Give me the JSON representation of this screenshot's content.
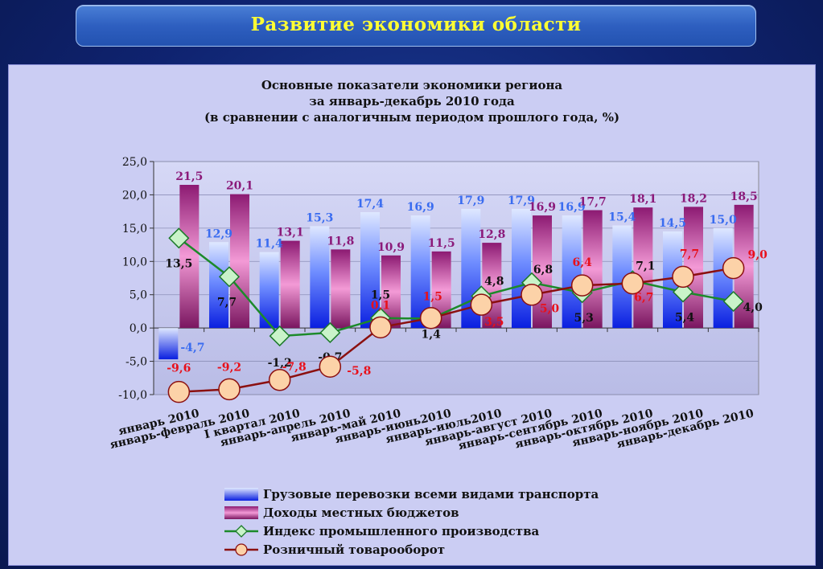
{
  "header": {
    "title": "Развитие экономики области"
  },
  "chart_data": {
    "type": "bar",
    "title_lines": [
      "Основные показатели экономики региона",
      "за январь-декабрь 2010 года",
      "(в сравнении с аналогичным периодом прошлого года, %)"
    ],
    "categories": [
      "январь 2010",
      "январь-февраль 2010",
      "I квартал  2010",
      "январь-апрель 2010",
      "январь-май 2010",
      "январь-июнь2010",
      "январь-июль2010",
      "январь-август 2010",
      "январь-сентябрь 2010",
      "январь-октябрь 2010",
      "январь-ноябрь 2010",
      "январь-декабрь 2010"
    ],
    "ylim": [
      -10,
      25
    ],
    "yticks": [
      "25,0",
      "20,0",
      "15,0",
      "10,0",
      "5,0",
      "0,0",
      "-5,0",
      "-10,0"
    ],
    "grid": true,
    "legend_position": "bottom",
    "series": [
      {
        "name": "Грузовые перевозки всеми видами транспорта",
        "kind": "bar",
        "color": "#1a3cff",
        "values": [
          -4.7,
          12.9,
          11.4,
          15.3,
          17.4,
          16.9,
          17.9,
          17.9,
          16.9,
          15.4,
          14.5,
          15.0
        ],
        "labels": [
          "-4,7",
          "12,9",
          "11,4",
          "15,3",
          "17,4",
          "16,9",
          "17,9",
          "17,9",
          "16,9",
          "15,4",
          "14,5",
          "15,0"
        ]
      },
      {
        "name": "Доходы местных бюджетов",
        "kind": "bar",
        "color": "#8b1a7a",
        "values": [
          21.5,
          20.1,
          13.1,
          11.8,
          10.9,
          11.5,
          12.8,
          16.9,
          17.7,
          18.1,
          18.2,
          18.5
        ],
        "labels": [
          "21,5",
          "20,1",
          "13,1",
          "11,8",
          "10,9",
          "11,5",
          "12,8",
          "16,9",
          "17,7",
          "18,1",
          "18,2",
          "18,5"
        ]
      },
      {
        "name": "Индекс промышленного производства",
        "kind": "line",
        "color": "#1c8a2a",
        "values": [
          13.5,
          7.7,
          -1.2,
          -0.7,
          1.5,
          1.4,
          4.8,
          6.8,
          5.3,
          7.1,
          5.4,
          4.0
        ],
        "labels": [
          "13,5",
          "7,7",
          "-1,2",
          "-0,7",
          "1,5",
          "1,4",
          "4,8",
          "6,8",
          "5,3",
          "7,1",
          "5,4",
          "4,0"
        ]
      },
      {
        "name": "Розничный товарооборот",
        "kind": "line",
        "color": "#8b1010",
        "values": [
          -9.6,
          -9.2,
          -7.8,
          -5.8,
          0.1,
          1.5,
          3.5,
          5.0,
          6.4,
          6.7,
          7.7,
          9.0
        ],
        "labels": [
          "-9,6",
          "-9,2",
          "-7,8",
          "-5,8",
          "0,1",
          "1,5",
          "3,5",
          "5,0",
          "6,4",
          "6,7",
          "7,7",
          "9,0"
        ]
      }
    ]
  }
}
